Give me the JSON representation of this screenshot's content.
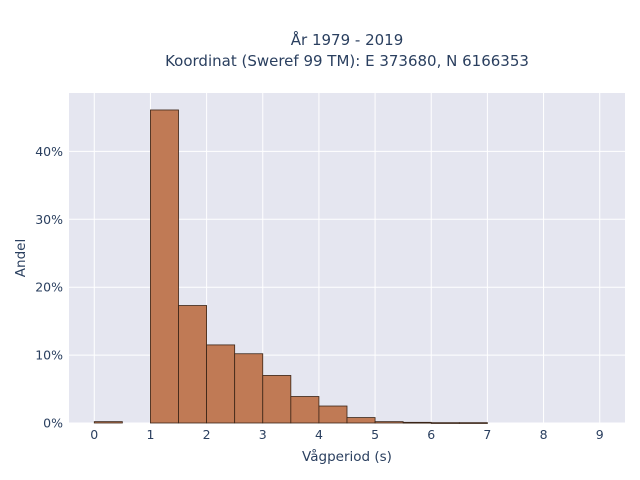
{
  "chart_data": {
    "type": "bar",
    "title_line1": "År 1979 - 2019",
    "title_line2": "Koordinat (Sweref 99 TM): E 373680, N 6166353",
    "xlabel": "Vågperiod (s)",
    "ylabel": "Andel",
    "bin_width": 0.5,
    "bins": [
      {
        "start": 0.0,
        "value": 0.2
      },
      {
        "start": 0.5,
        "value": 0.0
      },
      {
        "start": 1.0,
        "value": 46.1
      },
      {
        "start": 1.5,
        "value": 17.3
      },
      {
        "start": 2.0,
        "value": 11.5
      },
      {
        "start": 2.5,
        "value": 10.2
      },
      {
        "start": 3.0,
        "value": 7.0
      },
      {
        "start": 3.5,
        "value": 3.9
      },
      {
        "start": 4.0,
        "value": 2.5
      },
      {
        "start": 4.5,
        "value": 0.8
      },
      {
        "start": 5.0,
        "value": 0.2
      },
      {
        "start": 5.5,
        "value": 0.1
      },
      {
        "start": 6.0,
        "value": 0.05
      },
      {
        "start": 6.5,
        "value": 0.05
      }
    ],
    "xlim": [
      -0.45,
      9.45
    ],
    "ylim": [
      0,
      48.6
    ],
    "x_ticks": [
      0,
      1,
      2,
      3,
      4,
      5,
      6,
      7,
      8,
      9
    ],
    "y_ticks": [
      0,
      10,
      20,
      30,
      40
    ],
    "y_tick_labels": [
      "0%",
      "10%",
      "20%",
      "30%",
      "40%"
    ],
    "grid": true,
    "colors": {
      "bar_fill": "#c07a55",
      "bar_stroke": "#3a2416",
      "plot_bg": "#e5e6f0",
      "grid": "#ffffff",
      "text": "#2a3f5f"
    }
  }
}
